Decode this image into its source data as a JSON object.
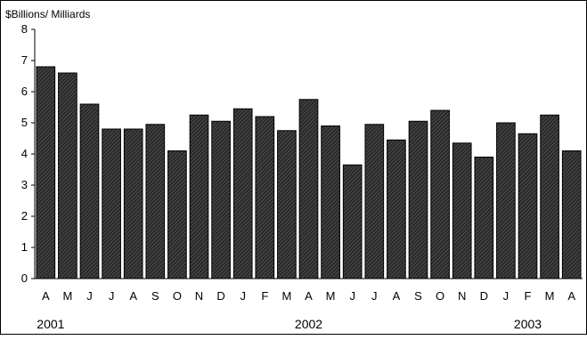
{
  "chart_data": {
    "type": "bar",
    "ylabel": "$Billions/ Milliards",
    "ylim": [
      0,
      8
    ],
    "yticks": [
      "0",
      "1",
      "2",
      "3",
      "4",
      "5",
      "6",
      "7",
      "8"
    ],
    "categories": [
      "A",
      "M",
      "J",
      "J",
      "A",
      "S",
      "O",
      "N",
      "D",
      "J",
      "F",
      "M",
      "A",
      "M",
      "J",
      "J",
      "A",
      "S",
      "O",
      "N",
      "D",
      "J",
      "F",
      "M",
      "A"
    ],
    "values": [
      6.8,
      6.6,
      5.6,
      4.8,
      4.8,
      4.95,
      4.1,
      5.25,
      5.05,
      5.45,
      5.2,
      4.75,
      5.75,
      4.9,
      3.65,
      4.95,
      4.45,
      5.05,
      5.4,
      4.35,
      3.9,
      5.0,
      4.65,
      5.25,
      4.1
    ],
    "year_labels": [
      {
        "label": "2001",
        "index": 0
      },
      {
        "label": "2002",
        "index": 12
      },
      {
        "label": "2003",
        "index": 22
      }
    ],
    "bar_color": "#2a2a2a",
    "grid": false
  }
}
